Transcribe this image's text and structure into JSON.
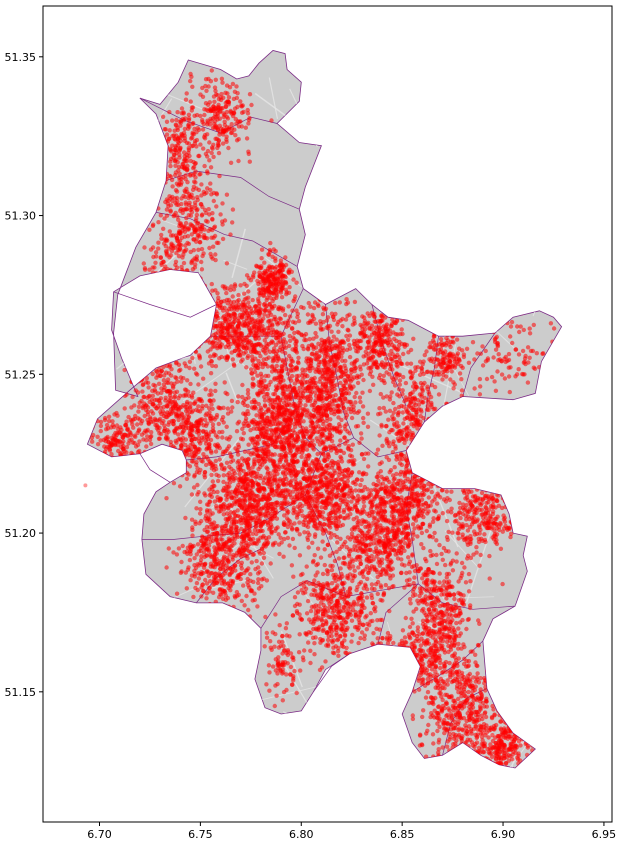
{
  "chart_data": {
    "type": "scatter",
    "title": "",
    "xlabel": "",
    "ylabel": "",
    "xlim": [
      6.672,
      6.954
    ],
    "ylim": [
      51.109,
      51.366
    ],
    "x_ticks": [
      6.7,
      6.75,
      6.8,
      6.85,
      6.9,
      6.95
    ],
    "x_tick_labels": [
      "6.70",
      "6.75",
      "6.80",
      "6.85",
      "6.90",
      "6.95"
    ],
    "y_ticks": [
      51.15,
      51.2,
      51.25,
      51.3,
      51.35
    ],
    "y_tick_labels": [
      "51.15",
      "51.20",
      "51.25",
      "51.30",
      "51.35"
    ],
    "grid": false,
    "colors": {
      "land": "#cccccc",
      "district_border": "#7b2b86",
      "points": "#ff0000",
      "roads": "#e6e6e6"
    },
    "city_outline": [
      [
        6.744,
        51.349
      ],
      [
        6.76,
        51.346
      ],
      [
        6.768,
        51.343
      ],
      [
        6.774,
        51.344
      ],
      [
        6.779,
        51.348
      ],
      [
        6.786,
        51.352
      ],
      [
        6.792,
        51.351
      ],
      [
        6.793,
        51.346
      ],
      [
        6.8,
        51.342
      ],
      [
        6.799,
        51.336
      ],
      [
        6.788,
        51.329
      ],
      [
        6.799,
        51.323
      ],
      [
        6.81,
        51.322
      ],
      [
        6.802,
        51.309
      ],
      [
        6.799,
        51.302
      ],
      [
        6.802,
        51.294
      ],
      [
        6.798,
        51.284
      ],
      [
        6.801,
        51.277
      ],
      [
        6.812,
        51.272
      ],
      [
        6.827,
        51.277
      ],
      [
        6.835,
        51.272
      ],
      [
        6.843,
        51.268
      ],
      [
        6.853,
        51.267
      ],
      [
        6.862,
        51.264
      ],
      [
        6.868,
        51.262
      ],
      [
        6.88,
        51.262
      ],
      [
        6.896,
        51.263
      ],
      [
        6.905,
        51.268
      ],
      [
        6.918,
        51.27
      ],
      [
        6.925,
        51.268
      ],
      [
        6.929,
        51.265
      ],
      [
        6.919,
        51.254
      ],
      [
        6.916,
        51.244
      ],
      [
        6.905,
        51.242
      ],
      [
        6.88,
        51.243
      ],
      [
        6.87,
        51.24
      ],
      [
        6.861,
        51.235
      ],
      [
        6.852,
        51.226
      ],
      [
        6.855,
        51.219
      ],
      [
        6.87,
        51.214
      ],
      [
        6.886,
        51.214
      ],
      [
        6.899,
        51.212
      ],
      [
        6.903,
        51.206
      ],
      [
        6.905,
        51.2
      ],
      [
        6.912,
        51.199
      ],
      [
        6.91,
        51.193
      ],
      [
        6.912,
        51.188
      ],
      [
        6.906,
        51.177
      ],
      [
        6.895,
        51.173
      ],
      [
        6.89,
        51.166
      ],
      [
        6.892,
        51.151
      ],
      [
        6.897,
        51.144
      ],
      [
        6.905,
        51.137
      ],
      [
        6.916,
        51.132
      ],
      [
        6.906,
        51.126
      ],
      [
        6.898,
        51.127
      ],
      [
        6.889,
        51.13
      ],
      [
        6.88,
        51.134
      ],
      [
        6.87,
        51.13
      ],
      [
        6.861,
        51.129
      ],
      [
        6.855,
        51.134
      ],
      [
        6.85,
        51.143
      ],
      [
        6.855,
        51.15
      ],
      [
        6.859,
        51.158
      ],
      [
        6.854,
        51.164
      ],
      [
        6.838,
        51.165
      ],
      [
        6.824,
        51.162
      ],
      [
        6.812,
        51.157
      ],
      [
        6.806,
        51.15
      ],
      [
        6.8,
        51.144
      ],
      [
        6.79,
        51.143
      ],
      [
        6.782,
        51.145
      ],
      [
        6.777,
        51.154
      ],
      [
        6.78,
        51.163
      ],
      [
        6.78,
        51.17
      ],
      [
        6.772,
        51.175
      ],
      [
        6.761,
        51.178
      ],
      [
        6.748,
        51.178
      ],
      [
        6.735,
        51.18
      ],
      [
        6.723,
        51.187
      ],
      [
        6.721,
        51.198
      ],
      [
        6.722,
        51.206
      ],
      [
        6.728,
        51.213
      ],
      [
        6.735,
        51.216
      ],
      [
        6.743,
        51.219
      ],
      [
        6.743,
        51.223
      ],
      [
        6.741,
        51.226
      ],
      [
        6.731,
        51.228
      ],
      [
        6.72,
        51.225
      ],
      [
        6.706,
        51.224
      ],
      [
        6.694,
        51.228
      ],
      [
        6.699,
        51.236
      ],
      [
        6.715,
        51.245
      ],
      [
        6.728,
        51.252
      ],
      [
        6.745,
        51.256
      ],
      [
        6.755,
        51.262
      ],
      [
        6.758,
        51.272
      ],
      [
        6.749,
        51.282
      ],
      [
        6.735,
        51.283
      ],
      [
        6.72,
        51.281
      ],
      [
        6.707,
        51.276
      ],
      [
        6.706,
        51.264
      ],
      [
        6.711,
        51.255
      ],
      [
        6.719,
        51.243
      ],
      [
        6.708,
        51.245
      ],
      [
        6.707,
        51.263
      ],
      [
        6.709,
        51.275
      ],
      [
        6.718,
        51.29
      ],
      [
        6.728,
        51.301
      ],
      [
        6.733,
        51.311
      ],
      [
        6.734,
        51.322
      ],
      [
        6.728,
        51.332
      ],
      [
        6.72,
        51.337
      ],
      [
        6.73,
        51.335
      ],
      [
        6.739,
        51.342
      ],
      [
        6.744,
        51.349
      ]
    ],
    "district_borders": [
      [
        [
          6.72,
          51.337
        ],
        [
          6.742,
          51.33
        ],
        [
          6.76,
          51.326
        ],
        [
          6.775,
          51.331
        ],
        [
          6.788,
          51.329
        ]
      ],
      [
        [
          6.733,
          51.311
        ],
        [
          6.748,
          51.314
        ],
        [
          6.77,
          51.312
        ],
        [
          6.784,
          51.306
        ],
        [
          6.799,
          51.302
        ]
      ],
      [
        [
          6.728,
          51.301
        ],
        [
          6.745,
          51.299
        ],
        [
          6.762,
          51.294
        ],
        [
          6.776,
          51.292
        ],
        [
          6.798,
          51.284
        ]
      ],
      [
        [
          6.707,
          51.276
        ],
        [
          6.725,
          51.272
        ],
        [
          6.745,
          51.268
        ],
        [
          6.758,
          51.272
        ]
      ],
      [
        [
          6.755,
          51.262
        ],
        [
          6.772,
          51.262
        ],
        [
          6.79,
          51.262
        ],
        [
          6.801,
          51.277
        ]
      ],
      [
        [
          6.79,
          51.262
        ],
        [
          6.793,
          51.252
        ],
        [
          6.797,
          51.239
        ],
        [
          6.802,
          51.23
        ],
        [
          6.81,
          51.225
        ]
      ],
      [
        [
          6.812,
          51.272
        ],
        [
          6.814,
          51.26
        ],
        [
          6.818,
          51.248
        ],
        [
          6.821,
          51.238
        ],
        [
          6.826,
          51.23
        ]
      ],
      [
        [
          6.835,
          51.272
        ],
        [
          6.84,
          51.26
        ],
        [
          6.846,
          51.249
        ],
        [
          6.852,
          51.24
        ]
      ],
      [
        [
          6.868,
          51.262
        ],
        [
          6.866,
          51.252
        ],
        [
          6.863,
          51.244
        ],
        [
          6.861,
          51.235
        ]
      ],
      [
        [
          6.743,
          51.223
        ],
        [
          6.758,
          51.224
        ],
        [
          6.772,
          51.226
        ],
        [
          6.786,
          51.228
        ],
        [
          6.797,
          51.239
        ]
      ],
      [
        [
          6.721,
          51.198
        ],
        [
          6.737,
          51.198
        ],
        [
          6.752,
          51.199
        ],
        [
          6.77,
          51.2
        ],
        [
          6.785,
          51.205
        ],
        [
          6.802,
          51.212
        ],
        [
          6.81,
          51.225
        ]
      ],
      [
        [
          6.81,
          51.225
        ],
        [
          6.826,
          51.23
        ],
        [
          6.838,
          51.224
        ],
        [
          6.852,
          51.226
        ]
      ],
      [
        [
          6.802,
          51.212
        ],
        [
          6.812,
          51.2
        ],
        [
          6.818,
          51.19
        ],
        [
          6.822,
          51.18
        ]
      ],
      [
        [
          6.748,
          51.178
        ],
        [
          6.758,
          51.186
        ],
        [
          6.77,
          51.192
        ],
        [
          6.78,
          51.195
        ]
      ],
      [
        [
          6.78,
          51.17
        ],
        [
          6.79,
          51.18
        ],
        [
          6.803,
          51.185
        ],
        [
          6.822,
          51.18
        ],
        [
          6.84,
          51.182
        ],
        [
          6.858,
          51.184
        ]
      ],
      [
        [
          6.855,
          51.219
        ],
        [
          6.852,
          51.208
        ],
        [
          6.855,
          51.198
        ],
        [
          6.858,
          51.184
        ],
        [
          6.87,
          51.178
        ],
        [
          6.885,
          51.176
        ],
        [
          6.906,
          51.177
        ]
      ],
      [
        [
          6.838,
          51.165
        ],
        [
          6.842,
          51.175
        ],
        [
          6.858,
          51.184
        ]
      ],
      [
        [
          6.806,
          51.15
        ],
        [
          6.815,
          51.158
        ],
        [
          6.824,
          51.162
        ]
      ],
      [
        [
          6.855,
          51.15
        ],
        [
          6.868,
          51.155
        ],
        [
          6.88,
          51.16
        ],
        [
          6.89,
          51.166
        ]
      ],
      [
        [
          6.87,
          51.13
        ],
        [
          6.874,
          51.14
        ],
        [
          6.882,
          51.148
        ],
        [
          6.892,
          51.151
        ]
      ],
      [
        [
          6.735,
          51.216
        ],
        [
          6.725,
          51.22
        ],
        [
          6.72,
          51.225
        ]
      ],
      [
        [
          6.88,
          51.243
        ],
        [
          6.884,
          51.252
        ],
        [
          6.896,
          51.263
        ]
      ]
    ],
    "point_clusters": [
      {
        "cx": 6.76,
        "cy": 51.331,
        "sx": 0.008,
        "sy": 0.006,
        "n": 220
      },
      {
        "cx": 6.74,
        "cy": 51.32,
        "sx": 0.006,
        "sy": 0.008,
        "n": 200
      },
      {
        "cx": 6.745,
        "cy": 51.298,
        "sx": 0.008,
        "sy": 0.008,
        "n": 250
      },
      {
        "cx": 6.733,
        "cy": 51.278,
        "sx": 0.006,
        "sy": 0.008,
        "n": 220
      },
      {
        "cx": 6.786,
        "cy": 51.28,
        "sx": 0.004,
        "sy": 0.004,
        "n": 200
      },
      {
        "cx": 6.77,
        "cy": 51.265,
        "sx": 0.015,
        "sy": 0.006,
        "n": 650
      },
      {
        "cx": 6.745,
        "cy": 51.232,
        "sx": 0.008,
        "sy": 0.008,
        "n": 350
      },
      {
        "cx": 6.71,
        "cy": 51.228,
        "sx": 0.008,
        "sy": 0.005,
        "n": 200
      },
      {
        "cx": 6.728,
        "cy": 51.242,
        "sx": 0.007,
        "sy": 0.007,
        "n": 200
      },
      {
        "cx": 6.79,
        "cy": 51.236,
        "sx": 0.01,
        "sy": 0.012,
        "n": 900
      },
      {
        "cx": 6.815,
        "cy": 51.248,
        "sx": 0.008,
        "sy": 0.012,
        "n": 600
      },
      {
        "cx": 6.84,
        "cy": 51.26,
        "sx": 0.006,
        "sy": 0.006,
        "n": 250
      },
      {
        "cx": 6.855,
        "cy": 51.235,
        "sx": 0.008,
        "sy": 0.01,
        "n": 400
      },
      {
        "cx": 6.775,
        "cy": 51.21,
        "sx": 0.012,
        "sy": 0.008,
        "n": 700
      },
      {
        "cx": 6.812,
        "cy": 51.212,
        "sx": 0.01,
        "sy": 0.008,
        "n": 550
      },
      {
        "cx": 6.85,
        "cy": 51.211,
        "sx": 0.012,
        "sy": 0.006,
        "n": 400
      },
      {
        "cx": 6.89,
        "cy": 51.205,
        "sx": 0.008,
        "sy": 0.006,
        "n": 260
      },
      {
        "cx": 6.84,
        "cy": 51.197,
        "sx": 0.009,
        "sy": 0.007,
        "n": 350
      },
      {
        "cx": 6.76,
        "cy": 51.19,
        "sx": 0.01,
        "sy": 0.008,
        "n": 400
      },
      {
        "cx": 6.818,
        "cy": 51.175,
        "sx": 0.01,
        "sy": 0.008,
        "n": 450
      },
      {
        "cx": 6.868,
        "cy": 51.175,
        "sx": 0.008,
        "sy": 0.01,
        "n": 400
      },
      {
        "cx": 6.855,
        "cy": 51.16,
        "sx": 0.01,
        "sy": 0.005,
        "n": 250
      },
      {
        "cx": 6.88,
        "cy": 51.145,
        "sx": 0.01,
        "sy": 0.01,
        "n": 450
      },
      {
        "cx": 6.9,
        "cy": 51.132,
        "sx": 0.006,
        "sy": 0.005,
        "n": 250
      },
      {
        "cx": 6.87,
        "cy": 51.255,
        "sx": 0.005,
        "sy": 0.004,
        "n": 120
      },
      {
        "cx": 6.9,
        "cy": 51.256,
        "sx": 0.015,
        "sy": 0.008,
        "n": 120
      },
      {
        "cx": 6.79,
        "cy": 51.16,
        "sx": 0.004,
        "sy": 0.006,
        "n": 80
      }
    ]
  }
}
